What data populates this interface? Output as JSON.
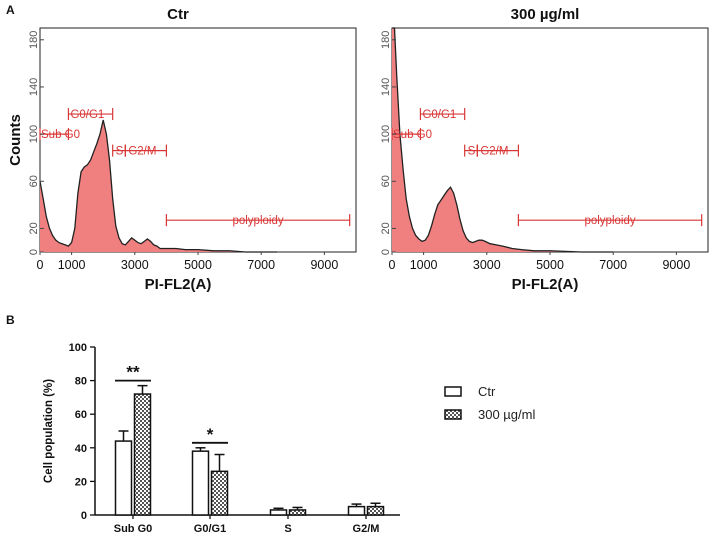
{
  "panel_labels": {
    "a": "A",
    "b": "B"
  },
  "chart_data": [
    {
      "type": "area",
      "title": "Ctr",
      "xlabel": "PI-FL2(A)",
      "ylabel": "Counts",
      "xlim": [
        0,
        10000
      ],
      "ylim": [
        0,
        190
      ],
      "xticks": [
        "0",
        "1000",
        "3000",
        "5000",
        "7000",
        "9000"
      ],
      "yticks": [
        "0",
        "20",
        "60",
        "100",
        "140",
        "180"
      ],
      "histogram": {
        "x": [
          0,
          100,
          200,
          300,
          400,
          500,
          600,
          700,
          800,
          900,
          1000,
          1100,
          1200,
          1300,
          1400,
          1500,
          1600,
          1700,
          1800,
          1900,
          2000,
          2100,
          2200,
          2300,
          2400,
          2500,
          2600,
          2700,
          2800,
          2900,
          3000,
          3100,
          3200,
          3300,
          3400,
          3500,
          3600,
          3700,
          3800,
          4000,
          4300,
          4600,
          5000,
          5500,
          6000,
          6500,
          7000,
          7500
        ],
        "y": [
          60,
          45,
          30,
          20,
          14,
          10,
          8,
          7,
          6,
          5,
          8,
          20,
          50,
          68,
          72,
          74,
          78,
          85,
          92,
          100,
          112,
          100,
          78,
          45,
          22,
          12,
          7,
          6,
          9,
          12,
          10,
          8,
          7,
          9,
          11,
          9,
          6,
          5,
          3,
          3,
          3,
          2,
          2,
          1,
          1,
          0,
          0,
          0
        ]
      },
      "gates": [
        {
          "label": "Sub G0",
          "from": 0,
          "to": 900,
          "level": 100
        },
        {
          "label": "G0/G1",
          "from": 900,
          "to": 2300,
          "level": 117
        },
        {
          "label": "S",
          "from": 2300,
          "to": 2700,
          "level": 86
        },
        {
          "label": "G2/M",
          "from": 2700,
          "to": 4000,
          "level": 86
        },
        {
          "label": "polyploidy",
          "from": 4000,
          "to": 9800,
          "level": 27
        }
      ]
    },
    {
      "type": "area",
      "title": "300 µg/ml",
      "xlabel": "PI-FL2(A)",
      "ylabel": "",
      "xlim": [
        0,
        10000
      ],
      "ylim": [
        0,
        190
      ],
      "xticks": [
        "0",
        "1000",
        "3000",
        "5000",
        "7000",
        "9000"
      ],
      "yticks": [
        "0",
        "20",
        "60",
        "100",
        "140",
        "180"
      ],
      "histogram": {
        "x": [
          0,
          80,
          150,
          250,
          350,
          450,
          550,
          650,
          750,
          850,
          950,
          1050,
          1150,
          1250,
          1350,
          1450,
          1550,
          1650,
          1750,
          1850,
          1950,
          2050,
          2150,
          2250,
          2350,
          2450,
          2550,
          2650,
          2750,
          2850,
          2950,
          3100,
          3300,
          3500,
          3800,
          4100,
          4500,
          5000,
          6000,
          7000
        ],
        "y": [
          190,
          190,
          150,
          100,
          70,
          45,
          30,
          20,
          14,
          11,
          9,
          10,
          14,
          22,
          32,
          40,
          44,
          48,
          52,
          55,
          50,
          40,
          28,
          18,
          12,
          9,
          8,
          9,
          10,
          10,
          9,
          7,
          6,
          5,
          3,
          2,
          1,
          1,
          0,
          0
        ]
      },
      "gates": [
        {
          "label": "Sub G0",
          "from": 0,
          "to": 900,
          "level": 100
        },
        {
          "label": "G0/G1",
          "from": 900,
          "to": 2300,
          "level": 117
        },
        {
          "label": "S",
          "from": 2300,
          "to": 2700,
          "level": 86
        },
        {
          "label": "G2/M",
          "from": 2700,
          "to": 4000,
          "level": 86
        },
        {
          "label": "polyploidy",
          "from": 4000,
          "to": 9800,
          "level": 27
        }
      ]
    },
    {
      "type": "bar",
      "categories": [
        "Sub G0",
        "G0/G1",
        "S",
        "G2/M"
      ],
      "series": [
        {
          "name": "Ctr",
          "values": [
            44,
            38,
            3,
            5
          ],
          "errors": [
            6,
            2,
            1,
            1.5
          ]
        },
        {
          "name": "300 µg/ml",
          "values": [
            72,
            26,
            3,
            5
          ],
          "errors": [
            5,
            10,
            1.5,
            2
          ]
        }
      ],
      "xlabel": "",
      "ylabel": "Cell population (%)",
      "ylim": [
        0,
        100
      ],
      "yticks": [
        "0",
        "20",
        "40",
        "60",
        "80",
        "100"
      ],
      "significance": [
        {
          "category": "Sub G0",
          "label": "**"
        },
        {
          "category": "G0/G1",
          "label": "*"
        }
      ],
      "legend_position": "right"
    }
  ]
}
